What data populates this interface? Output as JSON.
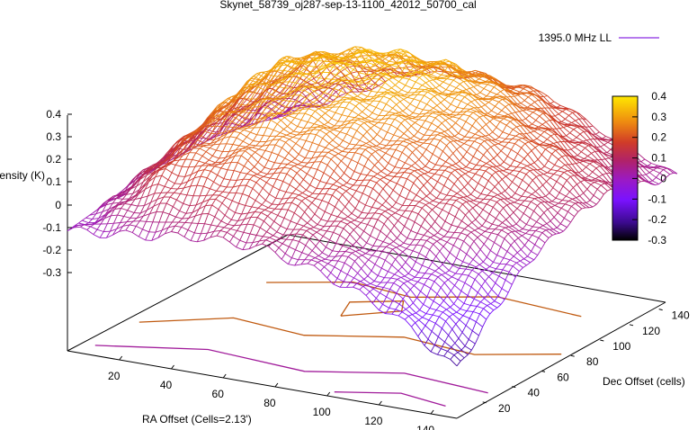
{
  "chart_data": {
    "type": "surface-3d",
    "title": "Skynet_58739_oj287-sep-13-1100_42012_50700_cal",
    "zlabel": "Intensity (K)",
    "xlabel": "RA Offset (Cells=2.13')",
    "ylabel": "Dec Offset (cells)",
    "legend": {
      "label": "1395.0 MHz LL",
      "position": "top-right",
      "color": "#8a2be2"
    },
    "z_ticks": [
      "-0.3",
      "-0.2",
      "-0.1",
      "0",
      "0.1",
      "0.2",
      "0.3",
      "0.4"
    ],
    "x_ticks": [
      "20",
      "40",
      "60",
      "80",
      "100",
      "120",
      "140"
    ],
    "y_ticks": [
      "20",
      "40",
      "60",
      "80",
      "100",
      "120",
      "140"
    ],
    "colorbar": {
      "ticks": [
        "0.4",
        "0.3",
        "0.2",
        "0.1",
        "0",
        "-0.1",
        "-0.2",
        "-0.3"
      ],
      "range": [
        -0.3,
        0.4
      ]
    },
    "xlim": [
      0,
      150
    ],
    "ylim": [
      0,
      150
    ],
    "zlim": [
      -0.3,
      0.4
    ],
    "surface_samples": {
      "note_rows_dec": [
        0,
        25,
        50,
        75,
        100,
        125,
        150
      ],
      "note_cols_ra": [
        0,
        25,
        50,
        75,
        100,
        125,
        150
      ],
      "z": [
        [
          0.0,
          0.02,
          0.05,
          0.05,
          0.0,
          -0.08,
          -0.22
        ],
        [
          0.02,
          0.18,
          0.2,
          0.15,
          0.08,
          0.0,
          -0.1
        ],
        [
          0.05,
          0.25,
          0.28,
          0.25,
          0.18,
          0.1,
          0.0
        ],
        [
          0.05,
          0.3,
          0.32,
          0.3,
          0.25,
          0.15,
          0.05
        ],
        [
          0.05,
          0.32,
          0.35,
          0.33,
          0.28,
          0.2,
          0.08
        ],
        [
          0.03,
          0.28,
          0.33,
          0.32,
          0.26,
          0.15,
          0.05
        ],
        [
          0.0,
          0.1,
          0.2,
          0.22,
          0.2,
          0.1,
          0.02
        ]
      ]
    }
  }
}
